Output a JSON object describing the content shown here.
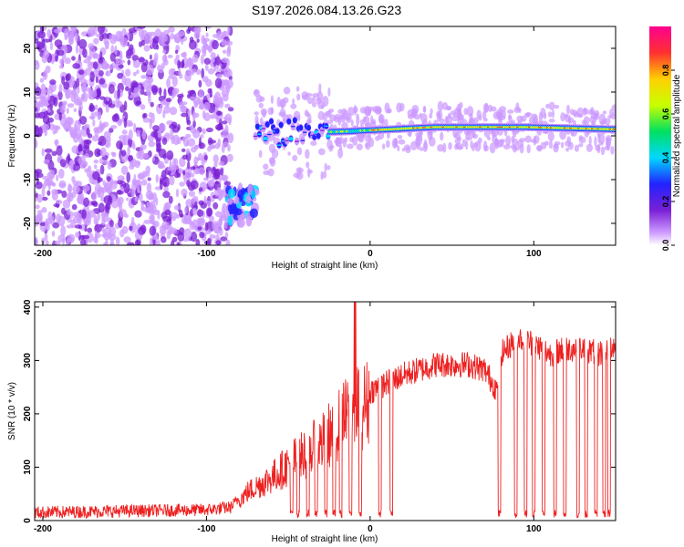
{
  "chart_data": [
    {
      "type": "heatmap",
      "title": "S197.2026.084.13.26.G23",
      "xlabel": "Height of straight line (km)",
      "ylabel": "Frequency (Hz)",
      "xlim": [
        -205,
        150
      ],
      "ylim": [
        -25,
        25
      ],
      "xticks": [
        -200,
        -100,
        0,
        100
      ],
      "xtick_labels": [
        "-200",
        "-100",
        "0",
        "100"
      ],
      "yticks": [
        -20,
        -10,
        0,
        10,
        20
      ],
      "ytick_labels": [
        "-20",
        "-10",
        "0",
        "10",
        "20"
      ],
      "colorbar": {
        "label": "Normalized spectral amplitude",
        "range": [
          0,
          1
        ],
        "ticks": [
          0.0,
          0.2,
          0.4,
          0.6,
          0.8
        ],
        "tick_labels": [
          "0.0",
          "0.2",
          "0.4",
          "0.6",
          "0.8"
        ],
        "colors": [
          "#ffffff",
          "#cc99ff",
          "#7a1fd6",
          "#2222ff",
          "#00d8ff",
          "#00e060",
          "#c8ff00",
          "#ffd000",
          "#ff3030",
          "#ff0090"
        ]
      },
      "features": [
        {
          "name": "noise",
          "x_range": [
            -205,
            -85
          ],
          "freq_range": [
            -25,
            25
          ],
          "amplitude": 0.1
        },
        {
          "name": "low_freq_patch",
          "x_range": [
            -88,
            -70
          ],
          "freq_range": [
            -20,
            -12
          ],
          "amplitude": 0.3
        },
        {
          "name": "tone_line",
          "x_range": [
            -70,
            150
          ],
          "freq_center": [
            0.5,
            1,
            2,
            2,
            1.5
          ],
          "amplitude": 0.9
        }
      ]
    },
    {
      "type": "line",
      "xlabel": "Height of straight line (km)",
      "ylabel": "SNR (10 * v/v)",
      "xlim": [
        -205,
        150
      ],
      "ylim": [
        0,
        410
      ],
      "xticks": [
        -200,
        -100,
        0,
        100
      ],
      "xtick_labels": [
        "-200",
        "-100",
        "0",
        "100"
      ],
      "yticks": [
        0,
        100,
        200,
        300,
        400
      ],
      "ytick_labels": [
        "0",
        "100",
        "200",
        "300",
        "400"
      ],
      "color": "#ee2020",
      "series": [
        {
          "name": "SNR envelope",
          "x": [
            -205,
            -150,
            -100,
            -85,
            -75,
            -60,
            -45,
            -30,
            -20,
            -10,
            0,
            20,
            40,
            60,
            70,
            78,
            80,
            90,
            100,
            110,
            120,
            130,
            140,
            150
          ],
          "values": [
            15,
            18,
            20,
            25,
            60,
            90,
            130,
            160,
            200,
            230,
            250,
            280,
            300,
            300,
            290,
            250,
            320,
            350,
            340,
            320,
            330,
            330,
            320,
            340
          ]
        }
      ],
      "dropouts_x": [
        -48,
        -44,
        -38,
        -33,
        -27,
        -22,
        -18,
        -12,
        -6,
        6,
        13,
        79,
        89,
        95,
        100,
        106,
        113,
        119,
        127,
        132,
        138,
        143,
        146
      ]
    }
  ]
}
